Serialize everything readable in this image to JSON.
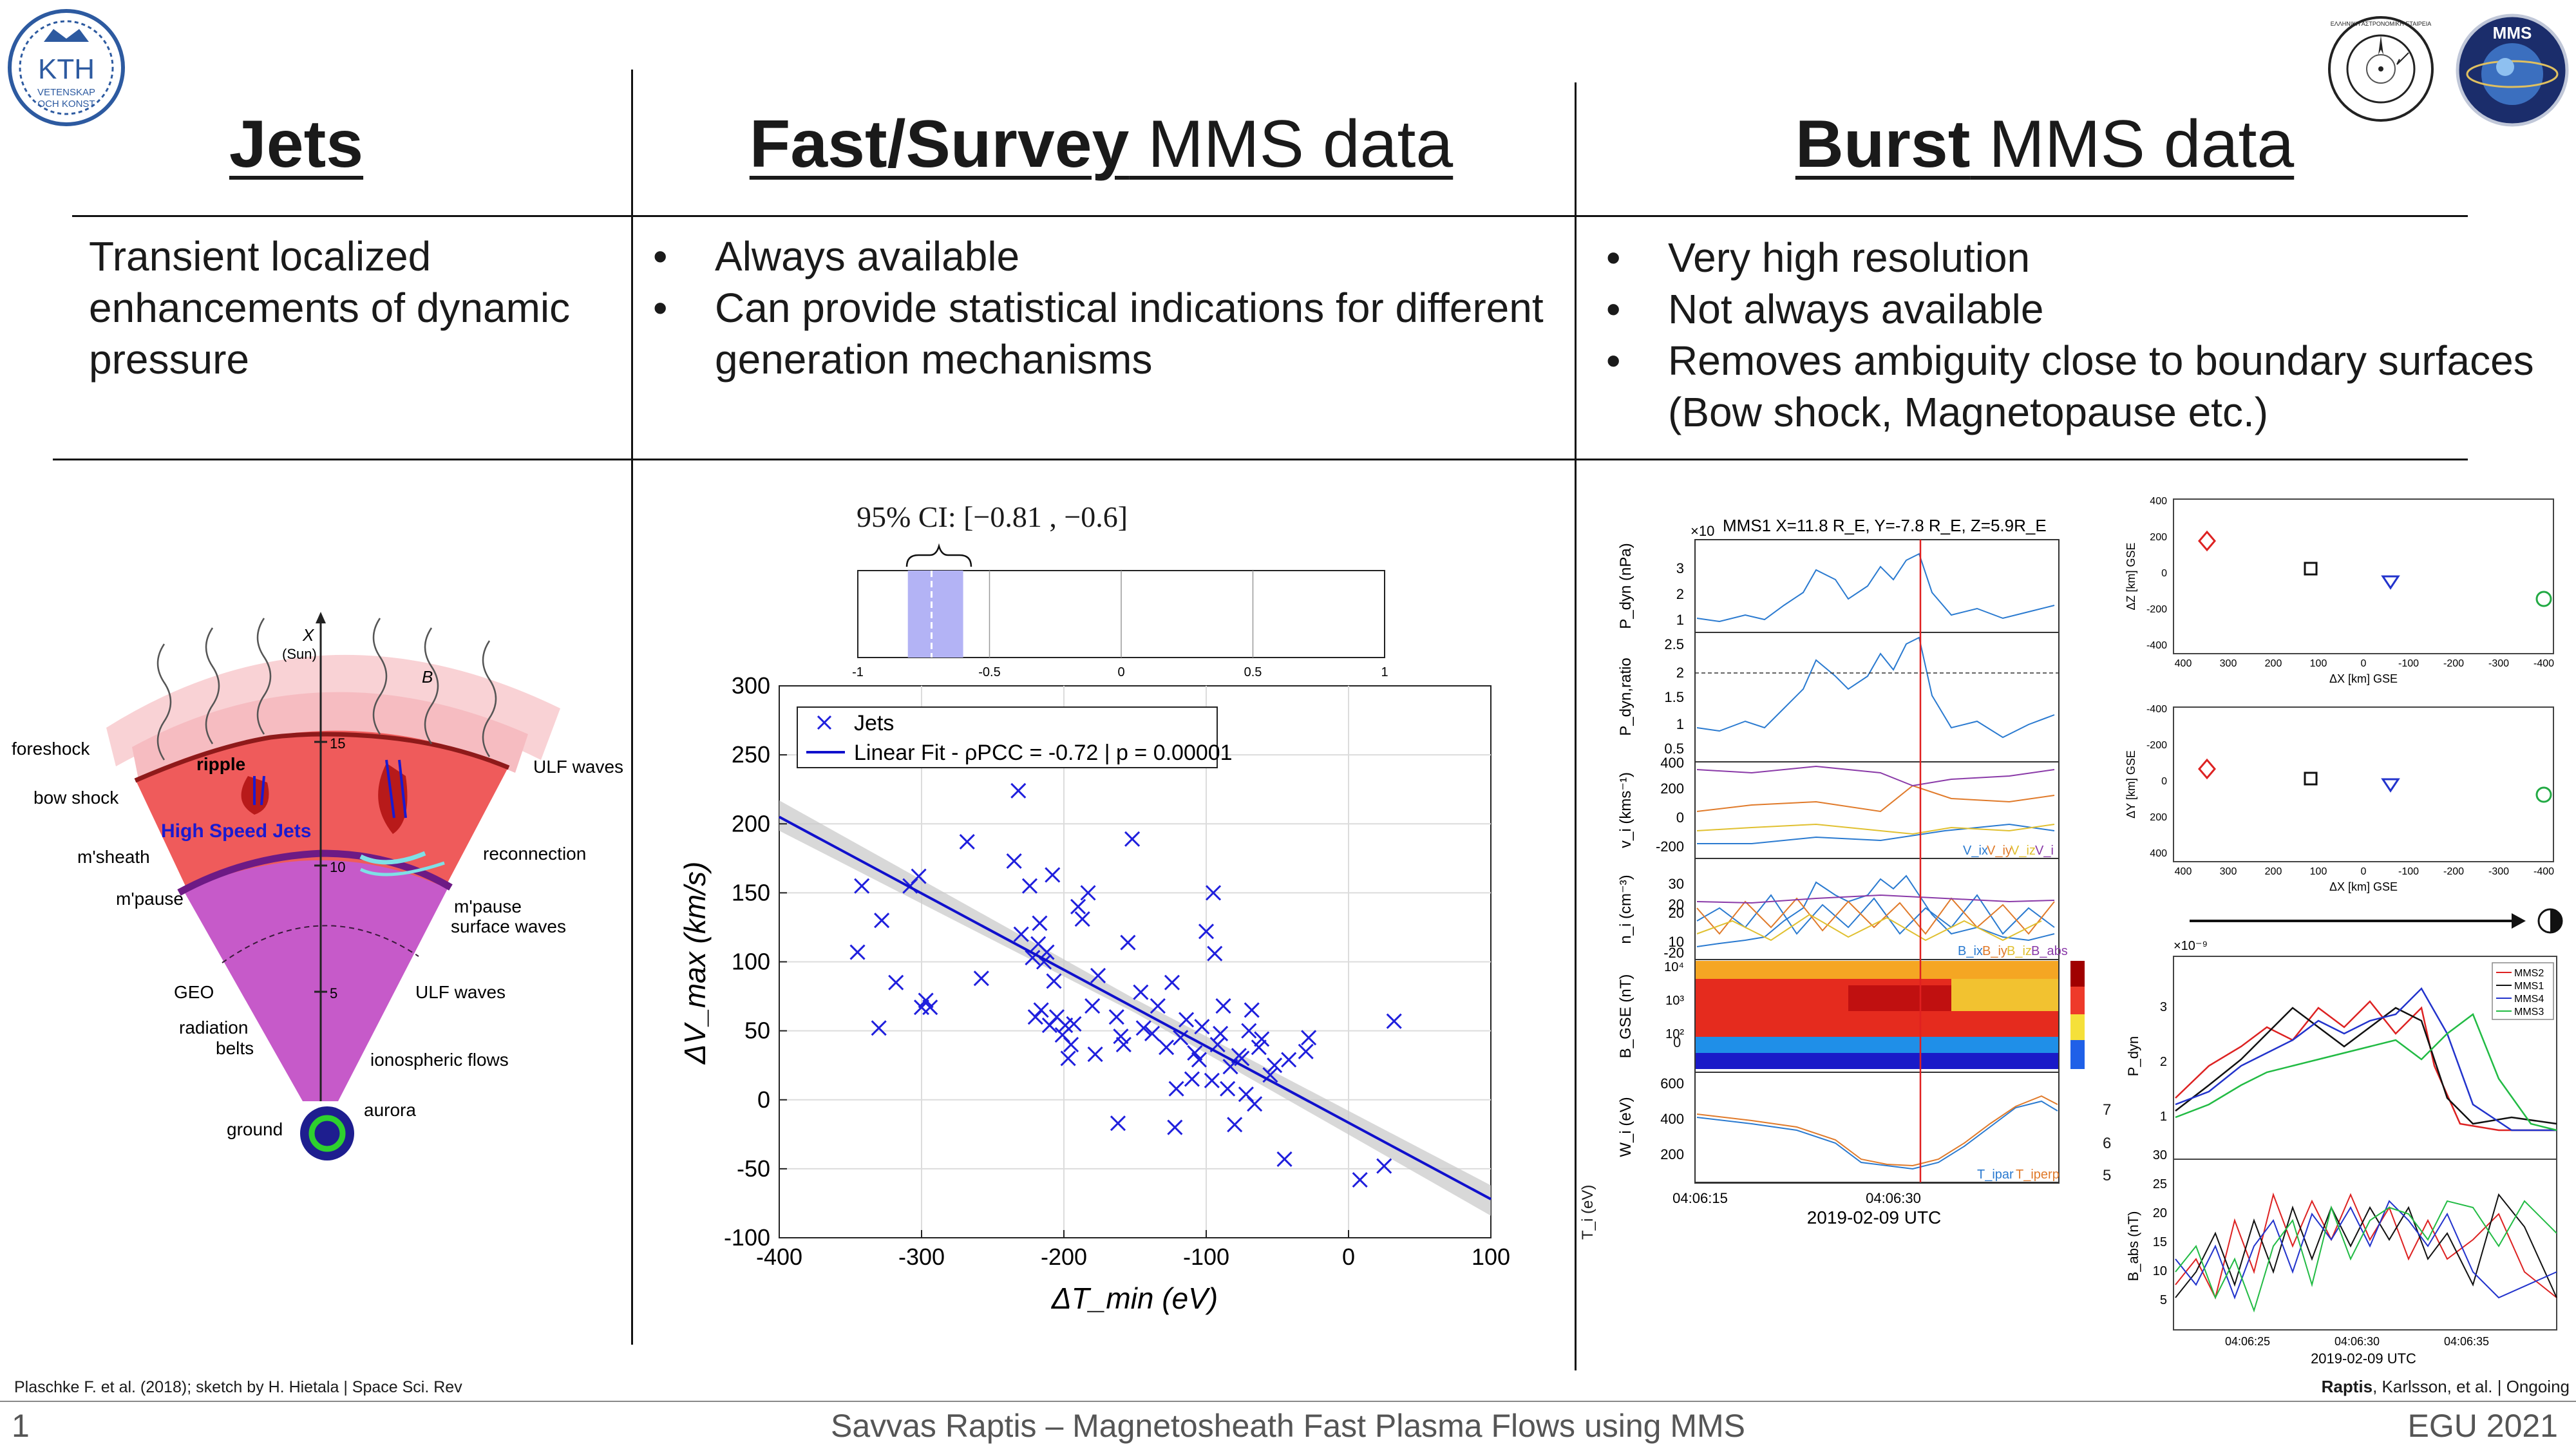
{
  "logos": {
    "kth_text": "KTH",
    "kth_sub1": "VETENSKAP",
    "kth_sub2": "OCH KONST",
    "society_text": "ΕΛΛΗΝΙΚΗ ΑΣΤΡΟΝΟΜΙΚΗ ΕΤΑΙΡΕΙΑ",
    "mms_text": "MMS"
  },
  "columns": {
    "jets": {
      "title_bold": "Jets",
      "description": "Transient localized enhancements of dynamic pressure"
    },
    "fast": {
      "title_bold": "Fast/Survey",
      "title_rest": " MMS data",
      "bullets": [
        "Always available",
        "Can provide statistical indications for different generation mechanisms"
      ]
    },
    "burst": {
      "title_bold": "Burst",
      "title_rest": " MMS data",
      "bullets": [
        "Very high resolution",
        "Not always available",
        "Removes ambiguity close to boundary surfaces (Bow shock, Magnetopause etc.)"
      ]
    }
  },
  "sketch": {
    "axis_x": "X",
    "axis_sun": "(Sun)",
    "axis_b": "B",
    "tick_15": "15",
    "tick_10": "10",
    "tick_5": "5",
    "labels": {
      "foreshock": "foreshock",
      "bow_shock": "bow shock",
      "msheath": "m'sheath",
      "mpause": "m'pause",
      "geo": "GEO",
      "radiation_belts_1": "radiation",
      "radiation_belts_2": "belts",
      "ground": "ground",
      "ripple": "ripple",
      "high_speed_jets": "High Speed Jets",
      "ulf_waves_top": "ULF waves",
      "reconnection": "reconnection",
      "mpause_surface_1": "m'pause",
      "mpause_surface_2": "surface  waves",
      "ulf_waves_mid": "ULF waves",
      "ionospheric_flows": "ionospheric flows",
      "aurora": "aurora"
    },
    "citation": "Plaschke F. et al. (2018); sketch by H. Hietala | Space Sci. Rev"
  },
  "ci_box": {
    "label": "95% CI: [−0.81 , −0.6]",
    "ticks": [
      "-1",
      "-0.5",
      "0",
      "0.5",
      "1"
    ],
    "range": [
      -0.81,
      -0.6
    ],
    "point": -0.72,
    "color": "#b3b3f5"
  },
  "chart_data": [
    {
      "type": "scatter",
      "xlabel": "ΔT_min (eV)",
      "ylabel": "ΔV_max (km/s)",
      "xlim": [
        -400,
        100
      ],
      "ylim": [
        -100,
        300
      ],
      "xticks": [
        "-400",
        "-300",
        "-200",
        "-100",
        "0",
        "100"
      ],
      "yticks": [
        "-100",
        "-50",
        "0",
        "50",
        "100",
        "150",
        "200",
        "250",
        "300"
      ],
      "grid": true,
      "legend": "top-left",
      "series": [
        {
          "name": "Jets",
          "marker": "x",
          "color": "#1f1fdd",
          "points": [
            [
              -342,
              155
            ],
            [
              -345,
              107
            ],
            [
              -328,
              130
            ],
            [
              -330,
              52
            ],
            [
              -318,
              85
            ],
            [
              -308,
              155
            ],
            [
              -302,
              162
            ],
            [
              -300,
              67
            ],
            [
              -297,
              72
            ],
            [
              -294,
              67
            ],
            [
              -268,
              187
            ],
            [
              -258,
              88
            ],
            [
              -235,
              173
            ],
            [
              -232,
              224
            ],
            [
              -230,
              120
            ],
            [
              -224,
              155
            ],
            [
              -222,
              103
            ],
            [
              -220,
              60
            ],
            [
              -218,
              113
            ],
            [
              -217,
              128
            ],
            [
              -216,
              65
            ],
            [
              -214,
              100
            ],
            [
              -212,
              107
            ],
            [
              -210,
              54
            ],
            [
              -208,
              163
            ],
            [
              -207,
              86
            ],
            [
              -205,
              60
            ],
            [
              -201,
              47
            ],
            [
              -199,
              54
            ],
            [
              -197,
              30
            ],
            [
              -195,
              40
            ],
            [
              -193,
              55
            ],
            [
              -190,
              140
            ],
            [
              -187,
              131
            ],
            [
              -183,
              150
            ],
            [
              -180,
              68
            ],
            [
              -178,
              33
            ],
            [
              -176,
              90
            ],
            [
              -163,
              60
            ],
            [
              -162,
              -17
            ],
            [
              -160,
              46
            ],
            [
              -158,
              40
            ],
            [
              -155,
              114
            ],
            [
              -152,
              189
            ],
            [
              -146,
              78
            ],
            [
              -144,
              52
            ],
            [
              -138,
              48
            ],
            [
              -134,
              68
            ],
            [
              -128,
              38
            ],
            [
              -124,
              85
            ],
            [
              -122,
              -20
            ],
            [
              -121,
              8
            ],
            [
              -118,
              45
            ],
            [
              -114,
              58
            ],
            [
              -110,
              15
            ],
            [
              -108,
              34
            ],
            [
              -105,
              29
            ],
            [
              -103,
              53
            ],
            [
              -100,
              122
            ],
            [
              -96,
              14
            ],
            [
              -95,
              150
            ],
            [
              -94,
              106
            ],
            [
              -92,
              40
            ],
            [
              -90,
              48
            ],
            [
              -88,
              68
            ],
            [
              -85,
              8
            ],
            [
              -83,
              24
            ],
            [
              -80,
              -18
            ],
            [
              -77,
              32
            ],
            [
              -75,
              30
            ],
            [
              -72,
              4
            ],
            [
              -70,
              50
            ],
            [
              -68,
              65
            ],
            [
              -66,
              -3
            ],
            [
              -63,
              38
            ],
            [
              -61,
              44
            ],
            [
              -55,
              18
            ],
            [
              -52,
              25
            ],
            [
              -45,
              -43
            ],
            [
              -42,
              29
            ],
            [
              -30,
              35
            ],
            [
              -28,
              45
            ],
            [
              8,
              -58
            ],
            [
              25,
              -48
            ],
            [
              32,
              57
            ]
          ]
        },
        {
          "name": "Linear Fit - ρ_PCC = -0.72 | p = 0.00001",
          "type": "line",
          "color": "#1010cc",
          "points": [
            [
              -400,
              205
            ],
            [
              100,
              -72
            ]
          ]
        }
      ],
      "legend_entries": [
        "Jets",
        "Linear Fit - ρPCC = -0.72 | p = 0.00001"
      ]
    }
  ],
  "burst_panels": {
    "title": "MMS1 X=11.8 R_E, Y=-7.8 R_E, Z=5.9R_E",
    "exponent_top": "×10",
    "ylabels": [
      "P_dyn (nPa)",
      "P_dyn,ratio",
      "v_i (kms⁻¹)",
      "n_i (cm⁻³)",
      "B_GSE (nT)",
      "W_i (eV)",
      "T_i (eV)"
    ],
    "pdyn_ticks": [
      "3",
      "2",
      "1"
    ],
    "ratio_ticks": [
      "2.5",
      "2",
      "1.5",
      "1",
      "0.5"
    ],
    "v_ticks": [
      "400",
      "200",
      "0",
      "-200"
    ],
    "n_ticks": [
      "30",
      "20",
      "10"
    ],
    "b_ticks": [
      "20",
      "0",
      "-20"
    ],
    "w_ticks": [
      "10⁴",
      "10³",
      "10²"
    ],
    "t_ticks": [
      "600",
      "400",
      "200"
    ],
    "colorbar_ticks": [
      "7",
      "6",
      "5"
    ],
    "v_legend": [
      "V_ix",
      "V_iy",
      "V_iz",
      "V_i"
    ],
    "b_legend": [
      "B_ix",
      "B_iy",
      "B_iz",
      "B_abs"
    ],
    "t_legend": [
      "T_ipar",
      "T_iperp"
    ],
    "time_ticks": [
      "04:06:15",
      "04:06:30"
    ],
    "date_label": "2019-02-09 UTC"
  },
  "separation_panels": {
    "top_ylabel": "ΔZ [km] GSE",
    "top_xlabel": "ΔX [km] GSE",
    "mid_ylabel": "ΔY [km] GSE",
    "mid_xlabel": "ΔX [km] GSE",
    "y_ticks_top": [
      "400",
      "200",
      "0",
      "-200",
      "-400"
    ],
    "y_ticks_mid": [
      "-400",
      "-200",
      "0",
      "200",
      "400"
    ],
    "x_ticks": [
      "400",
      "300",
      "200",
      "100",
      "0",
      "-100",
      "-200",
      "-300",
      "-400"
    ],
    "markers": [
      {
        "spacecraft": "MMS2",
        "shape": "diamond",
        "color": "#dd2222",
        "dx": 360,
        "dz": 100,
        "dy": 70
      },
      {
        "spacecraft": "MMS1",
        "shape": "square",
        "color": "#111111",
        "dx": 120,
        "dz": 30,
        "dy": 20
      },
      {
        "spacecraft": "MMS4",
        "shape": "triangle",
        "color": "#2233cc",
        "dx": -70,
        "dz": -20,
        "dy": -20
      },
      {
        "spacecraft": "MMS3",
        "shape": "circle",
        "color": "#22aa44",
        "dx": -400,
        "dz": -130,
        "dy": -80
      }
    ]
  },
  "multi_sc_panels": {
    "exponent": "×10⁻⁹",
    "pdyn_label": "P_dyn",
    "babs_label": "B_abs (nT)",
    "pdyn_ticks": [
      "3",
      "2",
      "1"
    ],
    "babs_ticks": [
      "30",
      "25",
      "20",
      "15",
      "10",
      "5"
    ],
    "legend": [
      "MMS2",
      "MMS1",
      "MMS4",
      "MMS3"
    ],
    "legend_colors": [
      "#dd2222",
      "#111111",
      "#2233cc",
      "#22bb44"
    ],
    "time_ticks": [
      "04:06:25",
      "04:06:30",
      "04:06:35"
    ],
    "date_label": "2019-02-09 UTC"
  },
  "footer": {
    "page_number": "1",
    "title": "Savvas Raptis – Magnetosheath Fast Plasma Flows using MMS",
    "conference": "EGU 2021",
    "credit_bold": "Raptis",
    "credit_rest": ", Karlsson, et al. | Ongoing"
  }
}
